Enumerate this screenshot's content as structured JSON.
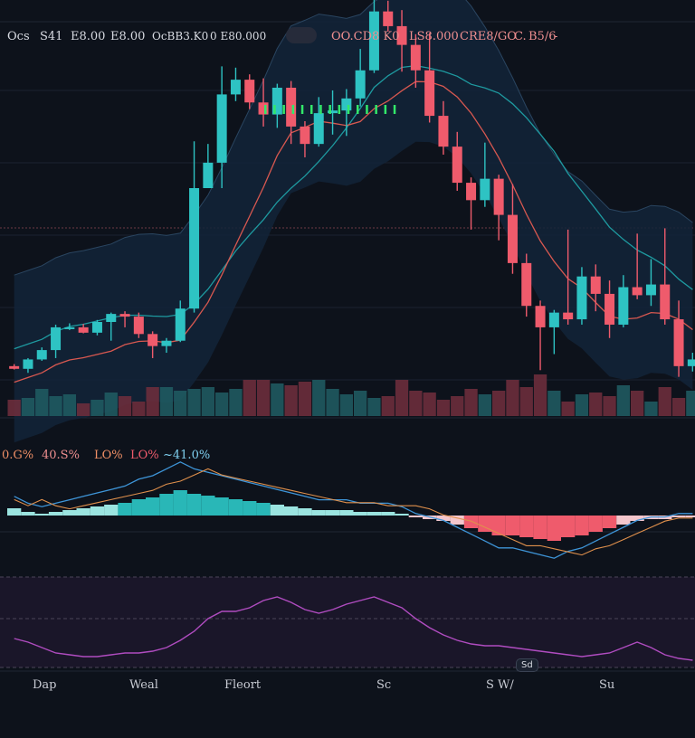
{
  "header": {
    "items": [
      "Ocs",
      "S41",
      "E8.00",
      "E8.00",
      "OcBB3.K0",
      "0 E80.000",
      "OO.CD8 K0",
      "LS8.000",
      "CRE8/GO",
      "C.",
      "B5/6",
      "-"
    ]
  },
  "indicator_legend": [
    "0.G%",
    "40.S%",
    "LO%",
    "LO%",
    "~41.0%"
  ],
  "x_ticks": [
    "Dap",
    "Weal",
    "Fleort",
    "Sc",
    "S W/",
    "Su"
  ],
  "rsi_badge": "Sd",
  "colors": {
    "up": "#2ec3c3",
    "down": "#ef5b6c",
    "background": "#0d121b",
    "band_fill": "#132538",
    "ma_slow": "#1e9aa0",
    "ma_fast": "#d85850",
    "macd_line": "#3e95d8",
    "signal_line": "#e0904c",
    "rsi_line": "#b04cc0",
    "rsi_band": "#1a1629",
    "marker": "#33e86a"
  },
  "chart_data": [
    {
      "type": "candlestick",
      "candles": [
        [
          5,
          34,
          30,
          37,
          29
        ],
        [
          6,
          30,
          44,
          46,
          24
        ],
        [
          7,
          44,
          58,
          62,
          42
        ],
        [
          8,
          58,
          92,
          96,
          46
        ],
        [
          9,
          92,
          92,
          98,
          88
        ],
        [
          10,
          92,
          84,
          97,
          83
        ],
        [
          11,
          84,
          100,
          103,
          80
        ],
        [
          12,
          100,
          112,
          114,
          72
        ],
        [
          13,
          112,
          108,
          116,
          92
        ],
        [
          14,
          108,
          82,
          114,
          76
        ],
        [
          15,
          82,
          64,
          86,
          46
        ],
        [
          16,
          64,
          72,
          76,
          54
        ],
        [
          17,
          72,
          120,
          132,
          70
        ],
        [
          18,
          120,
          300,
          370,
          114
        ],
        [
          19,
          300,
          338,
          366,
          300
        ],
        [
          20,
          338,
          440,
          482,
          300
        ],
        [
          21,
          440,
          462,
          480,
          430
        ],
        [
          22,
          462,
          428,
          470,
          418
        ],
        [
          23,
          428,
          410,
          464,
          392
        ],
        [
          24,
          410,
          450,
          456,
          390
        ],
        [
          25,
          450,
          392,
          460,
          366
        ],
        [
          26,
          392,
          366,
          400,
          346
        ],
        [
          27,
          366,
          412,
          436,
          362
        ],
        [
          28,
          412,
          416,
          446,
          380
        ],
        [
          29,
          416,
          434,
          448,
          378
        ],
        [
          30,
          434,
          476,
          508,
          422
        ],
        [
          31,
          476,
          564,
          610,
          472
        ],
        [
          32,
          564,
          542,
          580,
          534
        ],
        [
          33,
          542,
          514,
          566,
          474
        ],
        [
          34,
          514,
          476,
          530,
          450
        ],
        [
          35,
          476,
          408,
          532,
          398
        ],
        [
          36,
          408,
          362,
          430,
          350
        ],
        [
          37,
          362,
          308,
          384,
          296
        ],
        [
          38,
          308,
          282,
          316,
          238
        ],
        [
          39,
          282,
          314,
          368,
          272
        ],
        [
          40,
          314,
          260,
          320,
          222
        ],
        [
          41,
          260,
          188,
          306,
          172
        ],
        [
          42,
          188,
          124,
          202,
          108
        ],
        [
          43,
          124,
          92,
          132,
          28
        ],
        [
          44,
          92,
          114,
          118,
          52
        ],
        [
          45,
          114,
          104,
          238,
          96
        ],
        [
          46,
          104,
          168,
          182,
          96
        ],
        [
          47,
          168,
          142,
          186,
          116
        ],
        [
          48,
          142,
          96,
          162,
          76
        ],
        [
          49,
          96,
          152,
          170,
          92
        ],
        [
          50,
          152,
          140,
          232,
          134
        ],
        [
          51,
          140,
          156,
          194,
          124
        ],
        [
          52,
          156,
          104,
          240,
          96
        ],
        [
          53,
          104,
          34,
          132,
          18
        ],
        [
          54,
          34,
          44,
          54,
          26
        ]
      ],
      "volume": [
        18,
        20,
        30,
        22,
        24,
        14,
        18,
        26,
        22,
        16,
        32,
        32,
        28,
        30,
        32,
        26,
        30,
        40,
        40,
        36,
        34,
        38,
        40,
        30,
        24,
        28,
        20,
        22,
        40,
        28,
        26,
        18,
        22,
        30,
        24,
        28,
        40,
        32,
        46,
        28,
        16,
        24,
        26,
        22,
        34,
        28,
        16,
        32,
        20,
        28
      ]
    },
    {
      "type": "bar",
      "series": [
        {
          "values": [
            8,
            4,
            2,
            4,
            6,
            8,
            10,
            12,
            14,
            18,
            20,
            24,
            28,
            24,
            22,
            20,
            18,
            16,
            14,
            12,
            10,
            8,
            6,
            6,
            6,
            4,
            4,
            4,
            2,
            -2,
            -4,
            -6,
            -10,
            -14,
            -18,
            -22,
            -22,
            -24,
            -26,
            -28,
            -24,
            -22,
            -18,
            -14,
            -10,
            -6,
            -4,
            -4,
            -2,
            -2
          ]
        }
      ]
    },
    {
      "type": "line",
      "series": [
        {
          "values": [
            32,
            28,
            22,
            16,
            14,
            12,
            12,
            14,
            16,
            16,
            18,
            22,
            30,
            40,
            54,
            62,
            62,
            66,
            74,
            78,
            72,
            64,
            60,
            64,
            70,
            74,
            78,
            72,
            66,
            54,
            44,
            36,
            30,
            26,
            24,
            24,
            22,
            20,
            18,
            16,
            14,
            12,
            14,
            16,
            22,
            28,
            22,
            14,
            10,
            8
          ]
        }
      ]
    }
  ]
}
